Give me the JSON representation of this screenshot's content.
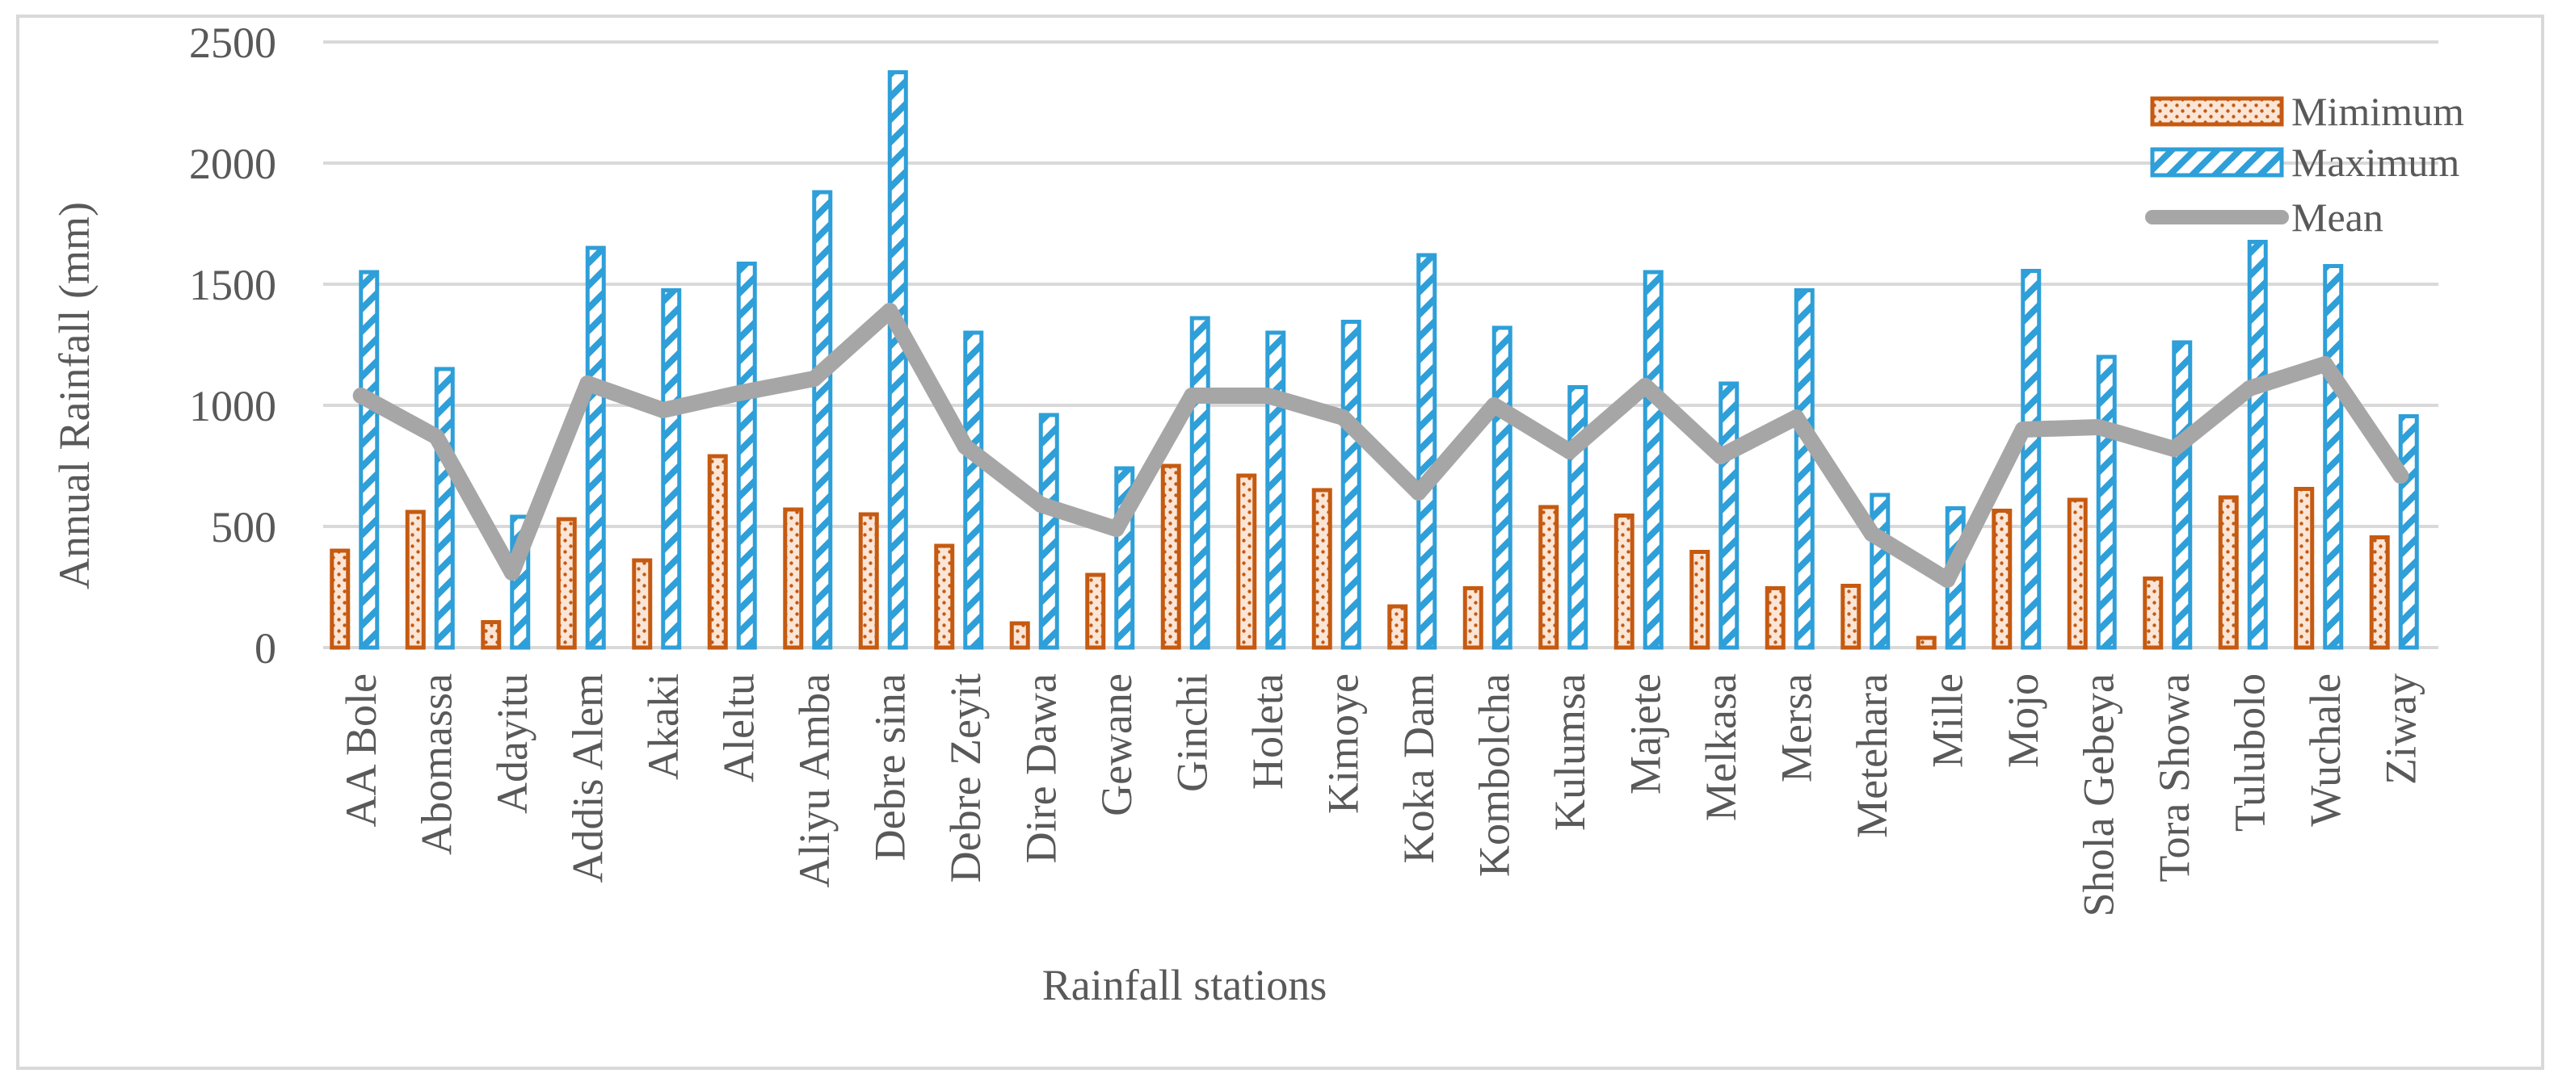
{
  "chart_data": {
    "type": "bar",
    "title": "",
    "xlabel": "Rainfall stations",
    "ylabel": "Annual Rainfall (mm)",
    "ylim": [
      0,
      2500
    ],
    "yticks": [
      0,
      500,
      1000,
      1500,
      2000,
      2500
    ],
    "grid": true,
    "legend_position": "top-right",
    "categories": [
      "AA Bole",
      "Abomassa",
      "Adayitu",
      "Addis Alem",
      "Akaki",
      "Aleltu",
      "Aliyu Amba",
      "Debre sina",
      "Debre Zeyit",
      "Dire Dawa",
      "Gewane",
      "Ginchi",
      "Holeta",
      "Kimoye",
      "Koka Dam",
      "Kombolcha",
      "Kulumsa",
      "Majete",
      "Melkasa",
      "Mersa",
      "Metehara",
      "Mille",
      "Mojo",
      "Shola Gebeya",
      "Tora Showa",
      "Tulubolo",
      "Wuchale",
      "Ziway"
    ],
    "series": [
      {
        "name": "Mimimum",
        "type": "bar",
        "color": "#c55a11",
        "values": [
          400,
          560,
          105,
          530,
          360,
          790,
          570,
          550,
          420,
          100,
          300,
          750,
          710,
          650,
          170,
          245,
          580,
          545,
          395,
          245,
          255,
          40,
          565,
          610,
          285,
          620,
          655,
          455
        ]
      },
      {
        "name": "Maximum",
        "type": "bar",
        "color": "#2e9fd8",
        "values": [
          1550,
          1150,
          540,
          1650,
          1475,
          1585,
          1880,
          2375,
          1300,
          960,
          740,
          1360,
          1300,
          1345,
          1620,
          1320,
          1075,
          1550,
          1090,
          1475,
          630,
          575,
          1555,
          1200,
          1260,
          1675,
          1575,
          955
        ]
      },
      {
        "name": "Mean",
        "type": "line",
        "color": "#a6a6a6",
        "values": [
          1040,
          870,
          310,
          1090,
          980,
          1050,
          1110,
          1390,
          830,
          590,
          490,
          1040,
          1040,
          950,
          640,
          1000,
          810,
          1080,
          790,
          950,
          470,
          280,
          900,
          910,
          820,
          1070,
          1170,
          710
        ]
      }
    ]
  }
}
